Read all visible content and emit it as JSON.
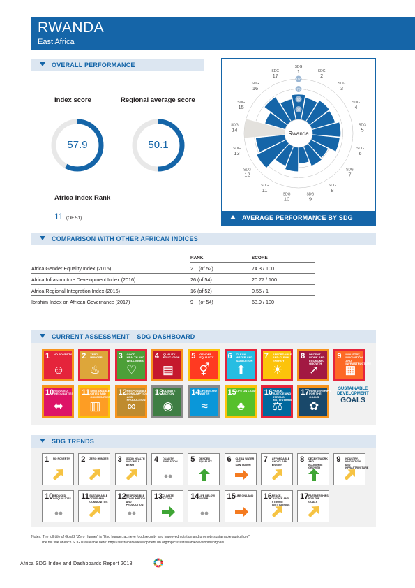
{
  "header": {
    "country": "RWANDA",
    "region": "East Africa"
  },
  "overall": {
    "section_title": "OVERALL PERFORMANCE",
    "index_score_label": "Index score",
    "index_score": 57.9,
    "index_score_text": "57.9",
    "regional_label": "Regional average score",
    "regional_score": 50.1,
    "regional_score_text": "50.1",
    "rank_label": "Africa Index Rank",
    "rank": "11",
    "rank_of": "(OF 51)"
  },
  "radar": {
    "section_title": "AVERAGE PERFORMANCE BY SDG",
    "center_label": "Rwanda",
    "scale_labels": [
      "100",
      "75",
      "50",
      "25"
    ],
    "goal_prefix": "SDG",
    "goals": [
      "1",
      "2",
      "3",
      "4",
      "5",
      "6",
      "7",
      "8",
      "9",
      "10",
      "11",
      "12",
      "13",
      "14",
      "15",
      "16",
      "17"
    ],
    "scores": [
      62,
      55,
      62,
      60,
      70,
      68,
      48,
      52,
      40,
      60,
      52,
      82,
      72,
      null,
      52,
      72,
      52
    ],
    "colors": {
      "bar": "#1565a8",
      "na": "#e3e1dd",
      "grid": "#bbbbbb"
    }
  },
  "comparison": {
    "section_title": "COMPARISON WITH OTHER AFRICAN INDICES",
    "col_rank": "RANK",
    "col_score": "SCORE",
    "rows": [
      {
        "name": "Africa Gender Equality Index (2015)",
        "rank": "2    (of 52)",
        "score": "74.3 / 100"
      },
      {
        "name": "Africa Infrastructure Development Index (2016)",
        "rank": "26 (of 54)",
        "score": "20.77 / 100"
      },
      {
        "name": "Africa Regional Integration Index (2016)",
        "rank": "16 (of 52)",
        "score": "0.55 / 1"
      },
      {
        "name": "Ibrahim Index on African Governance (2017)",
        "rank": "9    (of 54)",
        "score": "63.9 / 100"
      }
    ]
  },
  "dashboard": {
    "section_title": "CURRENT ASSESSMENT – SDG DASHBOARD",
    "logo_line1": "SUSTAINABLE",
    "logo_line2": "DEVELOPMENT",
    "logo_line3": "GOALS",
    "tiles": [
      {
        "num": "1",
        "name": "No Poverty",
        "icon": "family-icon",
        "glyph": "☺",
        "color": "#e5243b",
        "rating": "#f7941d"
      },
      {
        "num": "2",
        "name": "Zero Hunger",
        "icon": "bowl-icon",
        "glyph": "♨",
        "color": "#dda63a",
        "rating": "#e5243b"
      },
      {
        "num": "3",
        "name": "Good Health and Well-Being",
        "icon": "heartbeat-icon",
        "glyph": "♡",
        "color": "#4c9f38",
        "rating": "#e5243b"
      },
      {
        "num": "4",
        "name": "Quality Education",
        "icon": "book-icon",
        "glyph": "▤",
        "color": "#c5192d",
        "rating": "#f7941d"
      },
      {
        "num": "5",
        "name": "Gender Equality",
        "icon": "gender-icon",
        "glyph": "⚥",
        "color": "#ff3a21",
        "rating": "#fcc30b"
      },
      {
        "num": "6",
        "name": "Clean Water and Sanitation",
        "icon": "water-icon",
        "glyph": "⬆",
        "color": "#26bde2",
        "rating": "#e5243b"
      },
      {
        "num": "7",
        "name": "Affordable and Clean Energy",
        "icon": "sun-icon",
        "glyph": "☀",
        "color": "#fcc30b",
        "rating": "#e5243b"
      },
      {
        "num": "8",
        "name": "Decent Work and Economic Growth",
        "icon": "growth-icon",
        "glyph": "↗",
        "color": "#a21942",
        "rating": "#f7941d"
      },
      {
        "num": "9",
        "name": "Industry, Innovation and Infrastructure",
        "icon": "cubes-icon",
        "glyph": "▦",
        "color": "#fd6925",
        "rating": "#e5243b"
      },
      {
        "num": "10",
        "name": "Reduced Inequalities",
        "icon": "equality-icon",
        "glyph": "⬌",
        "color": "#dd1367",
        "rating": "#f7941d"
      },
      {
        "num": "11",
        "name": "Sustainable Cities and Communities",
        "icon": "city-icon",
        "glyph": "▥",
        "color": "#fd9d24",
        "rating": "#fcc30b"
      },
      {
        "num": "12",
        "name": "Responsible Consumption and Production",
        "icon": "infinity-icon",
        "glyph": "∞",
        "color": "#bf8b2e",
        "rating": "#f7941d"
      },
      {
        "num": "13",
        "name": "Climate Action",
        "icon": "eye-globe-icon",
        "glyph": "◉",
        "color": "#3f7e44",
        "rating": "#8a8a8a"
      },
      {
        "num": "14",
        "name": "Life Below Water",
        "icon": "fish-icon",
        "glyph": "≈",
        "color": "#0a97d9",
        "rating": "#8a8a8a"
      },
      {
        "num": "15",
        "name": "Life on Land",
        "icon": "tree-icon",
        "glyph": "♣",
        "color": "#56c02b",
        "rating": "#fcc30b"
      },
      {
        "num": "16",
        "name": "Peace, Justice and Strong Institutions",
        "icon": "dove-icon",
        "glyph": "⚖",
        "color": "#00689d",
        "rating": "#e5243b"
      },
      {
        "num": "17",
        "name": "Partnerships for the Goals",
        "icon": "rings-icon",
        "glyph": "✿",
        "color": "#19486a",
        "rating": "#f7941d"
      }
    ]
  },
  "trends": {
    "section_title": "SDG TRENDS",
    "tiles": [
      {
        "num": "1",
        "name": "No Poverty",
        "trend": "moderate",
        "icon": "arrow-diagonal-icon"
      },
      {
        "num": "2",
        "name": "Zero Hunger",
        "trend": "moderate",
        "icon": "arrow-diagonal-icon"
      },
      {
        "num": "3",
        "name": "Good Health and Well-Being",
        "trend": "moderate",
        "icon": "arrow-diagonal-icon"
      },
      {
        "num": "4",
        "name": "Quality Education",
        "trend": "na",
        "icon": "dots-icon"
      },
      {
        "num": "5",
        "name": "Gender Equality",
        "trend": "up",
        "icon": "arrow-up-icon"
      },
      {
        "num": "6",
        "name": "Clean Water and Sanitation",
        "trend": "stagnating",
        "icon": "arrow-right-icon"
      },
      {
        "num": "7",
        "name": "Affordable and Clean Energy",
        "trend": "moderate",
        "icon": "arrow-diagonal-icon"
      },
      {
        "num": "8",
        "name": "Decent Work and Economic Growth",
        "trend": "up",
        "icon": "arrow-up-icon"
      },
      {
        "num": "9",
        "name": "Industry, Innovation and Infrastructure",
        "trend": "moderate",
        "icon": "arrow-diagonal-icon"
      },
      {
        "num": "10",
        "name": "Reduced Inequalities",
        "trend": "na",
        "icon": "dots-icon"
      },
      {
        "num": "11",
        "name": "Sustainable Cities and Communities",
        "trend": "moderate",
        "icon": "arrow-diagonal-icon"
      },
      {
        "num": "12",
        "name": "Responsible Consumption and Production",
        "trend": "na",
        "icon": "dots-icon"
      },
      {
        "num": "13",
        "name": "Climate Action",
        "trend": "on-track",
        "icon": "arrow-right-icon"
      },
      {
        "num": "14",
        "name": "Life Below Water",
        "trend": "na",
        "icon": "dots-icon"
      },
      {
        "num": "15",
        "name": "Life on Land",
        "trend": "stagnating",
        "icon": "arrow-right-icon"
      },
      {
        "num": "16",
        "name": "Peace, Justice and Strong Institutions",
        "trend": "moderate",
        "icon": "arrow-diagonal-icon"
      },
      {
        "num": "17",
        "name": "Partnerships for the Goals",
        "trend": "moderate",
        "icon": "arrow-diagonal-icon"
      }
    ],
    "colors": {
      "up": "#3fa535",
      "moderate": "#f6c343",
      "stagnating": "#f47b20",
      "on-track": "#3fa535",
      "na": "#9b9b9b"
    }
  },
  "notes": {
    "line1": "Notes: The full title of Goal 2 \"Zero Hunger\" is \"End hunger, achieve food security and improved nutrition and promote sustainable agriculture\".",
    "line2": "The full title of each SDG is available here: https://sustainabledevelopment.un.org/topics/sustainabledevelopmentgoals"
  },
  "footer": {
    "text": "Africa SDG Index and Dashboards Report 2018"
  }
}
